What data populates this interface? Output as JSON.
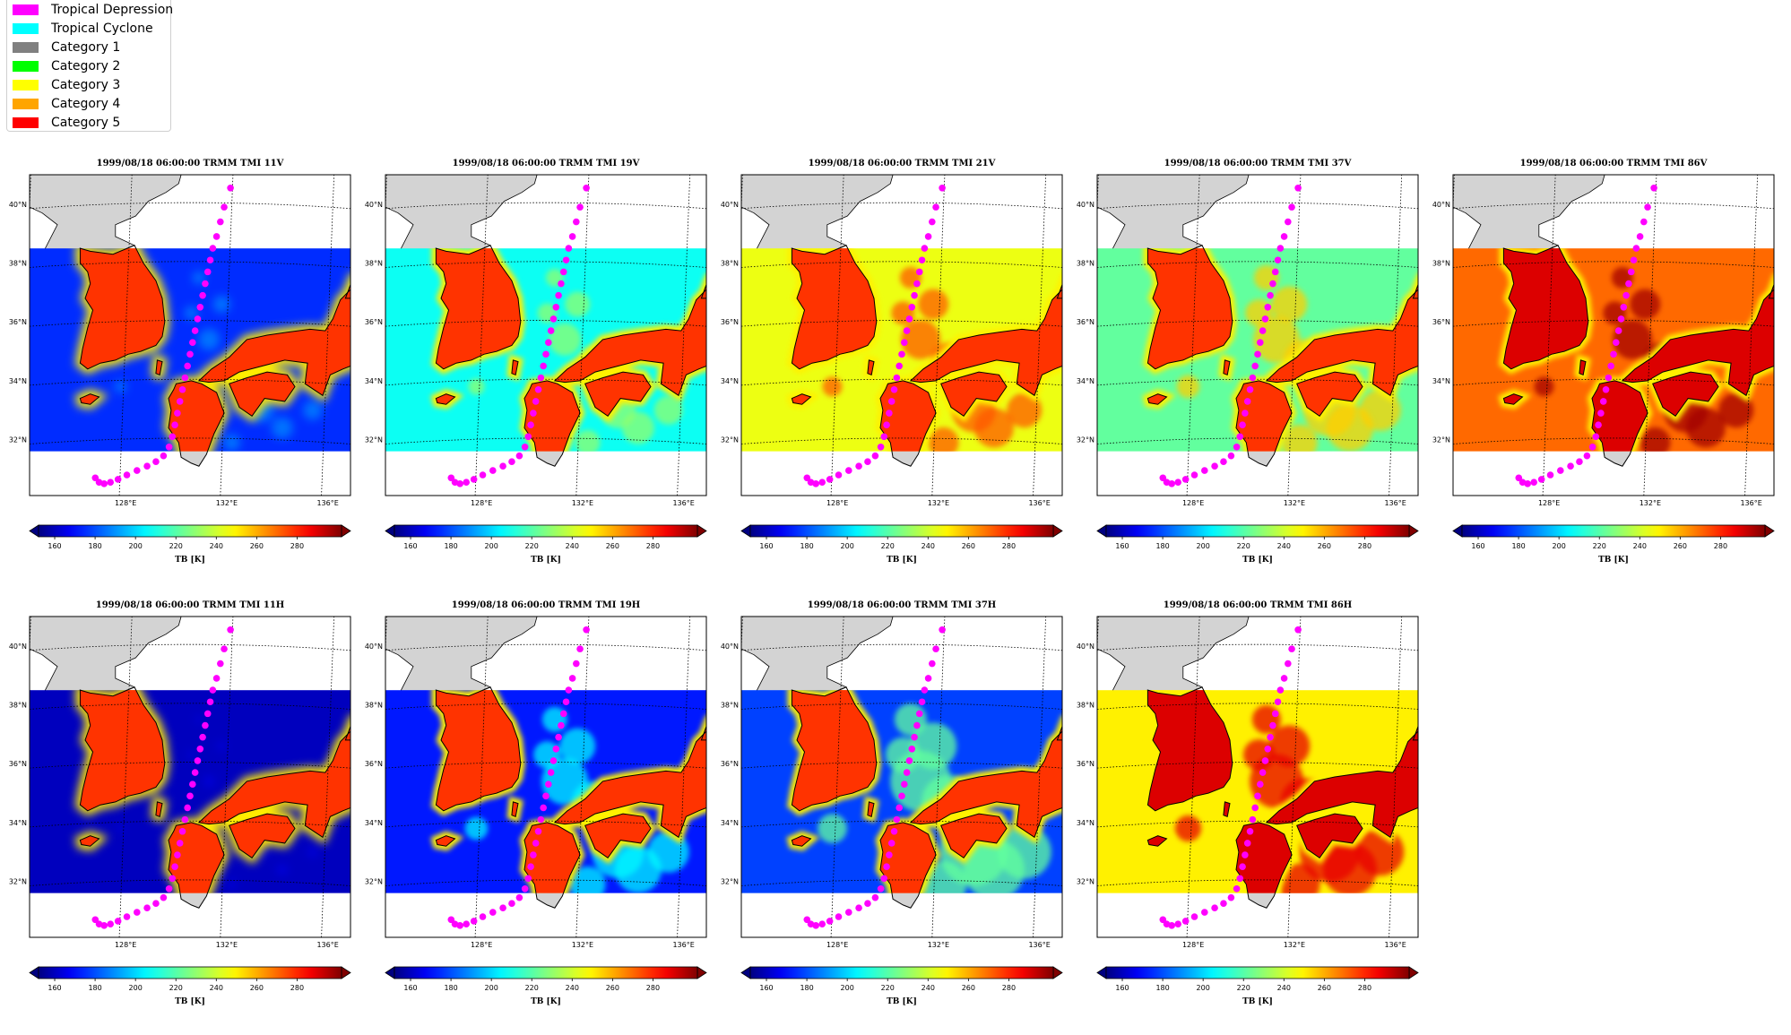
{
  "legend": {
    "items": [
      {
        "label": "Tropical Depression",
        "color": "#ff00ff"
      },
      {
        "label": "Tropical Cyclone",
        "color": "#00ffff"
      },
      {
        "label": "Category 1",
        "color": "#808080"
      },
      {
        "label": "Category 2",
        "color": "#00ff00"
      },
      {
        "label": "Category 3",
        "color": "#ffff00"
      },
      {
        "label": "Category 4",
        "color": "#ffa500"
      },
      {
        "label": "Category 5",
        "color": "#ff0000"
      }
    ]
  },
  "panels": [
    {
      "title": "1999/08/18 06:00:00  TRMM TMI 11V",
      "channel": "11V",
      "sea_tb": 175,
      "ocean_rain": 0.25
    },
    {
      "title": "1999/08/18 06:00:00  TRMM TMI 19V",
      "channel": "19V",
      "sea_tb": 208,
      "ocean_rain": 0.4
    },
    {
      "title": "1999/08/18 06:00:00  TRMM TMI 21V",
      "channel": "21V",
      "sea_tb": 245,
      "ocean_rain": 0.5
    },
    {
      "title": "1999/08/18 06:00:00  TRMM TMI 37V",
      "channel": "37V",
      "sea_tb": 222,
      "ocean_rain": 0.6
    },
    {
      "title": "1999/08/18 06:00:00  TRMM TMI 86V",
      "channel": "86V",
      "sea_tb": 270,
      "ocean_rain": 0.5
    },
    {
      "title": "1999/08/18 06:00:00  TRMM TMI 11H",
      "channel": "11H",
      "sea_tb": 160,
      "ocean_rain": 0.1
    },
    {
      "title": "1999/08/18 06:00:00  TRMM TMI 19H",
      "channel": "19H",
      "sea_tb": 172,
      "ocean_rain": 0.6
    },
    {
      "title": "1999/08/18 06:00:00  TRMM TMI 37H",
      "channel": "37H",
      "sea_tb": 178,
      "ocean_rain": 0.8
    },
    {
      "title": "1999/08/18 06:00:00  TRMM TMI 86H",
      "channel": "86H",
      "sea_tb": 250,
      "ocean_rain": 0.7
    }
  ],
  "map": {
    "lat_labels": [
      "40°N",
      "38°N",
      "36°N",
      "34°N",
      "32°N"
    ],
    "lon_labels": [
      "128°E",
      "132°E",
      "136°E"
    ]
  },
  "colorbar": {
    "ticks": [
      "160",
      "180",
      "200",
      "220",
      "240",
      "260",
      "280"
    ],
    "tick_values": [
      160,
      180,
      200,
      220,
      240,
      260,
      280
    ],
    "range": [
      152,
      302
    ],
    "label": "TB [K]",
    "colormap": "jet"
  },
  "track": {
    "category": "Tropical Depression",
    "color": "#ff00ff",
    "points": [
      [
        126.8,
        30.7
      ],
      [
        126.95,
        30.55
      ],
      [
        127.15,
        30.5
      ],
      [
        127.4,
        30.55
      ],
      [
        127.7,
        30.65
      ],
      [
        128.05,
        30.8
      ],
      [
        128.45,
        30.95
      ],
      [
        128.85,
        31.1
      ],
      [
        129.2,
        31.25
      ],
      [
        129.5,
        31.45
      ],
      [
        129.72,
        31.75
      ],
      [
        129.85,
        32.1
      ],
      [
        129.95,
        32.5
      ],
      [
        130.05,
        32.9
      ],
      [
        130.15,
        33.3
      ],
      [
        130.25,
        33.7
      ],
      [
        130.35,
        34.1
      ],
      [
        130.45,
        34.5
      ],
      [
        130.55,
        34.9
      ],
      [
        130.65,
        35.3
      ],
      [
        130.75,
        35.7
      ],
      [
        130.85,
        36.1
      ],
      [
        130.95,
        36.5
      ],
      [
        131.05,
        36.9
      ],
      [
        131.15,
        37.3
      ],
      [
        131.25,
        37.7
      ],
      [
        131.35,
        38.1
      ],
      [
        131.45,
        38.5
      ],
      [
        131.6,
        38.9
      ],
      [
        131.75,
        39.4
      ],
      [
        131.9,
        39.9
      ],
      [
        132.15,
        40.55
      ]
    ]
  }
}
